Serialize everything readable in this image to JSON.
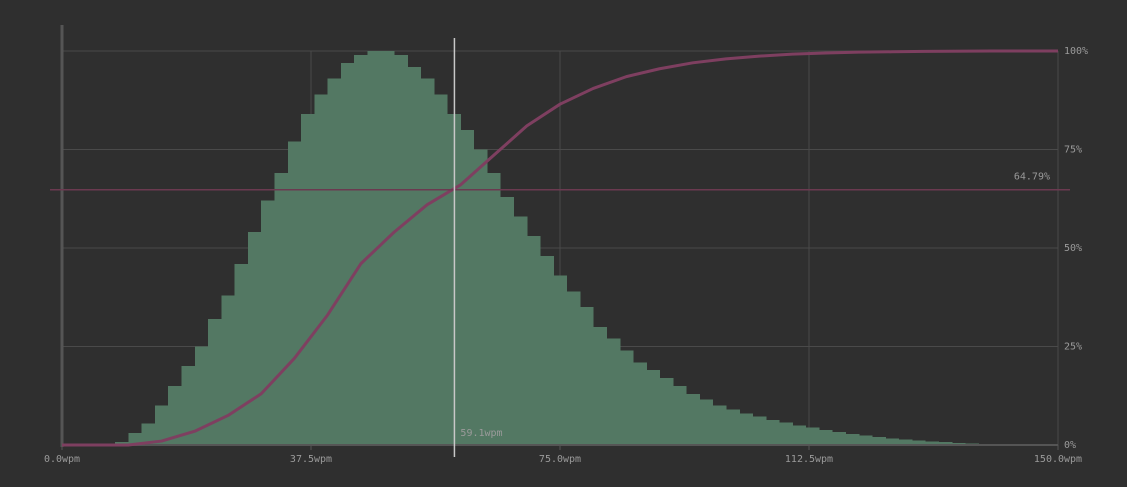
{
  "chart_data": {
    "type": "histogram",
    "bins": [
      0,
      2,
      4,
      6,
      8,
      10,
      12,
      14,
      16,
      18,
      20,
      22,
      24,
      26,
      28,
      30,
      32,
      34,
      36,
      38,
      40,
      42,
      44,
      46,
      48,
      50,
      52,
      54,
      56,
      58,
      60,
      62,
      64,
      66,
      68,
      70,
      72,
      74,
      76,
      78,
      80,
      82,
      84,
      86,
      88,
      90,
      92,
      94,
      96,
      98,
      100,
      102,
      104,
      106,
      108,
      110,
      112,
      114,
      116,
      118,
      120,
      122,
      124,
      126,
      128,
      130,
      132,
      134,
      136,
      138,
      140,
      142,
      144,
      146,
      148,
      150
    ],
    "values": [
      0,
      0,
      0,
      0,
      0.8,
      3,
      5.5,
      10,
      15,
      20,
      25,
      32,
      38,
      46,
      54,
      62,
      69,
      77,
      84,
      89,
      93,
      97,
      99,
      100,
      100,
      99,
      96,
      93,
      89,
      84,
      80,
      75,
      69,
      63,
      58,
      53,
      48,
      43,
      39,
      35,
      30,
      27,
      24,
      21,
      19,
      17,
      15,
      13,
      11.5,
      10,
      9,
      8,
      7.2,
      6.4,
      5.7,
      5,
      4.4,
      3.8,
      3.3,
      2.8,
      2.4,
      2,
      1.7,
      1.4,
      1.1,
      0.9,
      0.7,
      0.5,
      0.4,
      0.3,
      0.2,
      0.15,
      0.1,
      0.05,
      0
    ],
    "color": "#537863",
    "line": {
      "type": "line",
      "x": [
        0,
        5,
        10,
        15,
        20,
        25,
        30,
        35,
        40,
        45,
        50,
        55,
        60,
        65,
        70,
        75,
        80,
        85,
        90,
        95,
        100,
        105,
        110,
        115,
        120,
        125,
        130,
        140,
        150
      ],
      "values": [
        0,
        0,
        0,
        1,
        3.5,
        7.5,
        13,
        22,
        33,
        46,
        54,
        61,
        66,
        73.5,
        81,
        86.5,
        90.5,
        93.5,
        95.5,
        97,
        98,
        98.7,
        99.2,
        99.5,
        99.7,
        99.8,
        99.9,
        100,
        100
      ],
      "color": "#7e3f60"
    },
    "xlim": [
      0,
      150
    ],
    "xticks": [
      {
        "value": 0,
        "label": "0.0wpm"
      },
      {
        "value": 37.5,
        "label": "37.5wpm"
      },
      {
        "value": 75,
        "label": "75.0wpm"
      },
      {
        "value": 112.5,
        "label": "112.5wpm"
      },
      {
        "value": 150,
        "label": "150.0wpm"
      }
    ],
    "ylim": [
      0,
      100
    ],
    "yticks": [
      {
        "value": 0,
        "label": "0%"
      },
      {
        "value": 25,
        "label": "25%"
      },
      {
        "value": 50,
        "label": "50%"
      },
      {
        "value": 75,
        "label": "75%"
      },
      {
        "value": 100,
        "label": "100%"
      }
    ],
    "grid": true,
    "marker": {
      "x": 59.1,
      "x_label": "59.1wpm",
      "y": 64.79,
      "y_label": "64.79%"
    }
  }
}
